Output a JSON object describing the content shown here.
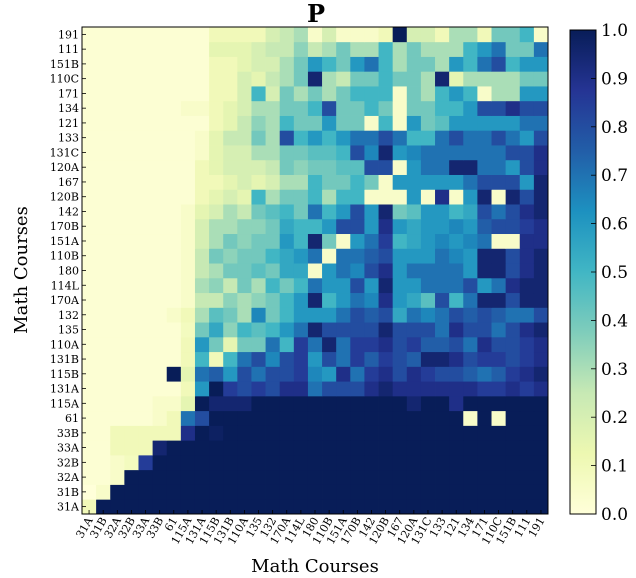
{
  "chart_data": {
    "type": "heatmap",
    "title": "P",
    "xlabel": "Math Courses",
    "ylabel": "Math Courses",
    "categories": [
      "31A",
      "31B",
      "32A",
      "32B",
      "33A",
      "33B",
      "61",
      "115A",
      "131A",
      "115B",
      "131B",
      "110A",
      "135",
      "132",
      "170A",
      "114L",
      "180",
      "110B",
      "151A",
      "170B",
      "142",
      "120B",
      "167",
      "120A",
      "131C",
      "133",
      "121",
      "134",
      "171",
      "110C",
      "151B",
      "111",
      "191"
    ],
    "colorbar": {
      "range": [
        0.0,
        1.0
      ],
      "ticks": [
        "0.0",
        "0.1",
        "0.2",
        "0.3",
        "0.4",
        "0.5",
        "0.6",
        "0.7",
        "0.8",
        "0.9",
        "1.0"
      ]
    },
    "values_note": "values[i][j]: row i = y-axis course (bottom to top), column j = x-axis course (left to right)",
    "values": [
      [
        0.1,
        1.0,
        1.0,
        1.0,
        1.0,
        1.0,
        1.0,
        1.0,
        1.0,
        1.0,
        1.0,
        1.0,
        1.0,
        1.0,
        1.0,
        1.0,
        1.0,
        1.0,
        1.0,
        1.0,
        1.0,
        1.0,
        1.0,
        1.0,
        1.0,
        1.0,
        1.0,
        1.0,
        1.0,
        1.0,
        1.0,
        1.0,
        1.0
      ],
      [
        0.0,
        0.05,
        1.0,
        1.0,
        1.0,
        1.0,
        1.0,
        1.0,
        1.0,
        1.0,
        1.0,
        1.0,
        1.0,
        1.0,
        1.0,
        1.0,
        1.0,
        1.0,
        1.0,
        1.0,
        1.0,
        1.0,
        1.0,
        1.0,
        1.0,
        1.0,
        1.0,
        1.0,
        1.0,
        1.0,
        1.0,
        1.0,
        1.0
      ],
      [
        0.02,
        0.02,
        0.05,
        1.0,
        1.0,
        1.0,
        1.0,
        1.0,
        1.0,
        1.0,
        1.0,
        1.0,
        1.0,
        1.0,
        1.0,
        1.0,
        1.0,
        1.0,
        1.0,
        1.0,
        1.0,
        1.0,
        1.0,
        1.0,
        1.0,
        1.0,
        1.0,
        1.0,
        1.0,
        1.0,
        1.0,
        1.0,
        1.0
      ],
      [
        0.02,
        0.02,
        0.05,
        0.08,
        0.85,
        1.0,
        1.0,
        1.0,
        1.0,
        1.0,
        1.0,
        1.0,
        1.0,
        1.0,
        1.0,
        1.0,
        1.0,
        1.0,
        1.0,
        1.0,
        1.0,
        1.0,
        1.0,
        1.0,
        1.0,
        1.0,
        1.0,
        1.0,
        1.0,
        1.0,
        1.0,
        1.0,
        1.0
      ],
      [
        0.02,
        0.02,
        0.1,
        0.1,
        0.1,
        0.95,
        1.0,
        1.0,
        1.0,
        1.0,
        1.0,
        1.0,
        1.0,
        1.0,
        1.0,
        1.0,
        1.0,
        1.0,
        1.0,
        1.0,
        1.0,
        1.0,
        1.0,
        1.0,
        1.0,
        1.0,
        1.0,
        1.0,
        1.0,
        1.0,
        1.0,
        1.0,
        1.0
      ],
      [
        0.02,
        0.02,
        0.1,
        0.1,
        0.1,
        0.1,
        0.1,
        0.9,
        1.0,
        0.98,
        1.0,
        1.0,
        1.0,
        1.0,
        1.0,
        1.0,
        1.0,
        1.0,
        1.0,
        1.0,
        1.0,
        1.0,
        1.0,
        1.0,
        1.0,
        1.0,
        1.0,
        1.0,
        1.0,
        1.0,
        1.0,
        1.0,
        1.0
      ],
      [
        0.02,
        0.02,
        0.02,
        0.02,
        0.02,
        0.05,
        0.1,
        0.7,
        0.8,
        1.0,
        1.0,
        1.0,
        1.0,
        1.0,
        1.0,
        1.0,
        1.0,
        1.0,
        1.0,
        1.0,
        1.0,
        1.0,
        1.0,
        1.0,
        1.0,
        1.0,
        1.0,
        0.05,
        1.0,
        0.05,
        1.0,
        1.0,
        1.0
      ],
      [
        0.02,
        0.02,
        0.02,
        0.02,
        0.02,
        0.05,
        0.05,
        0.15,
        1.0,
        0.95,
        0.95,
        0.95,
        1.0,
        1.0,
        1.0,
        1.0,
        1.0,
        1.0,
        1.0,
        1.0,
        1.0,
        1.0,
        1.0,
        0.95,
        1.0,
        1.0,
        0.9,
        1.0,
        1.0,
        1.0,
        1.0,
        1.0,
        1.0
      ],
      [
        0.02,
        0.02,
        0.02,
        0.02,
        0.02,
        0.02,
        0.02,
        0.1,
        0.6,
        1.0,
        0.85,
        0.8,
        0.85,
        0.8,
        0.9,
        0.9,
        0.7,
        0.8,
        0.8,
        0.8,
        0.9,
        0.95,
        0.9,
        0.9,
        0.9,
        0.9,
        0.9,
        0.9,
        0.85,
        0.85,
        0.9,
        0.85,
        0.9
      ],
      [
        0.02,
        0.02,
        0.02,
        0.02,
        0.02,
        0.02,
        1.0,
        0.15,
        0.7,
        0.75,
        0.6,
        0.8,
        0.7,
        0.8,
        0.8,
        0.85,
        0.65,
        0.6,
        0.9,
        0.7,
        0.85,
        0.9,
        0.8,
        0.9,
        0.85,
        0.8,
        0.8,
        0.75,
        0.7,
        0.75,
        0.85,
        0.9,
        0.95
      ],
      [
        0.02,
        0.02,
        0.02,
        0.02,
        0.02,
        0.02,
        0.02,
        0.1,
        0.5,
        0.1,
        0.5,
        0.7,
        0.8,
        0.65,
        0.8,
        0.85,
        0.6,
        0.8,
        0.7,
        0.85,
        0.75,
        0.85,
        0.8,
        0.75,
        0.95,
        0.95,
        0.9,
        0.8,
        0.85,
        0.85,
        0.8,
        0.85,
        0.9
      ],
      [
        0.02,
        0.02,
        0.02,
        0.02,
        0.02,
        0.02,
        0.02,
        0.1,
        0.6,
        0.4,
        0.15,
        0.4,
        0.4,
        0.7,
        0.5,
        0.85,
        0.7,
        0.95,
        0.7,
        0.85,
        0.85,
        0.9,
        0.8,
        0.85,
        0.75,
        0.75,
        0.8,
        0.7,
        0.9,
        0.8,
        0.8,
        0.85,
        0.9
      ],
      [
        0.02,
        0.02,
        0.02,
        0.02,
        0.02,
        0.02,
        0.02,
        0.08,
        0.4,
        0.55,
        0.35,
        0.5,
        0.45,
        0.5,
        0.6,
        0.7,
        0.95,
        0.8,
        0.8,
        0.8,
        0.8,
        0.95,
        0.8,
        0.8,
        0.8,
        0.7,
        0.9,
        0.8,
        0.8,
        0.7,
        0.8,
        0.9,
        0.95
      ],
      [
        0.02,
        0.02,
        0.02,
        0.02,
        0.02,
        0.02,
        0.05,
        0.1,
        0.3,
        0.45,
        0.4,
        0.3,
        0.65,
        0.4,
        0.5,
        0.6,
        0.6,
        0.6,
        0.7,
        0.8,
        0.75,
        0.8,
        0.55,
        0.7,
        0.65,
        0.7,
        0.8,
        0.75,
        0.8,
        0.75,
        0.7,
        0.7,
        0.8
      ],
      [
        0.02,
        0.02,
        0.02,
        0.02,
        0.02,
        0.02,
        0.02,
        0.05,
        0.25,
        0.25,
        0.35,
        0.3,
        0.35,
        0.4,
        0.5,
        0.6,
        0.95,
        0.5,
        0.6,
        0.7,
        0.65,
        0.9,
        0.6,
        0.55,
        0.45,
        0.8,
        0.5,
        0.7,
        0.95,
        0.95,
        0.8,
        0.95,
        0.95
      ],
      [
        0.02,
        0.02,
        0.02,
        0.02,
        0.02,
        0.02,
        0.02,
        0.05,
        0.3,
        0.35,
        0.25,
        0.4,
        0.3,
        0.5,
        0.4,
        0.5,
        0.7,
        0.6,
        0.6,
        0.8,
        0.6,
        0.95,
        0.6,
        0.6,
        0.7,
        0.7,
        0.7,
        0.8,
        0.6,
        0.7,
        0.9,
        0.95,
        0.95
      ],
      [
        0.02,
        0.02,
        0.02,
        0.02,
        0.02,
        0.02,
        0.02,
        0.05,
        0.25,
        0.3,
        0.4,
        0.4,
        0.45,
        0.4,
        0.55,
        0.55,
        0.05,
        0.6,
        0.7,
        0.65,
        0.8,
        0.9,
        0.6,
        0.7,
        0.7,
        0.7,
        0.7,
        0.6,
        0.95,
        0.95,
        0.8,
        0.9,
        0.95
      ],
      [
        0.02,
        0.02,
        0.02,
        0.02,
        0.02,
        0.02,
        0.02,
        0.05,
        0.25,
        0.4,
        0.35,
        0.4,
        0.4,
        0.5,
        0.55,
        0.6,
        0.7,
        0.05,
        0.7,
        0.7,
        0.75,
        0.8,
        0.6,
        0.6,
        0.6,
        0.7,
        0.65,
        0.6,
        0.95,
        0.95,
        0.8,
        0.9,
        0.95
      ],
      [
        0.02,
        0.02,
        0.02,
        0.02,
        0.02,
        0.02,
        0.02,
        0.05,
        0.2,
        0.3,
        0.4,
        0.35,
        0.4,
        0.4,
        0.6,
        0.5,
        0.95,
        0.4,
        0.05,
        0.6,
        0.7,
        0.85,
        0.5,
        0.55,
        0.6,
        0.65,
        0.6,
        0.65,
        0.7,
        0.05,
        0.05,
        0.9,
        0.9
      ],
      [
        0.02,
        0.02,
        0.02,
        0.02,
        0.02,
        0.02,
        0.02,
        0.05,
        0.2,
        0.3,
        0.3,
        0.35,
        0.35,
        0.4,
        0.55,
        0.5,
        0.5,
        0.6,
        0.8,
        0.8,
        0.6,
        0.9,
        0.6,
        0.55,
        0.6,
        0.6,
        0.65,
        0.6,
        0.75,
        0.8,
        0.8,
        0.85,
        0.9
      ],
      [
        0.02,
        0.02,
        0.02,
        0.02,
        0.02,
        0.02,
        0.02,
        0.05,
        0.15,
        0.2,
        0.3,
        0.25,
        0.4,
        0.45,
        0.5,
        0.4,
        0.7,
        0.5,
        0.6,
        0.8,
        0.6,
        0.95,
        0.4,
        0.45,
        0.6,
        0.6,
        0.5,
        0.55,
        0.8,
        0.7,
        0.8,
        0.9,
        0.95
      ],
      [
        0.02,
        0.02,
        0.02,
        0.02,
        0.02,
        0.02,
        0.02,
        0.02,
        0.1,
        0.15,
        0.2,
        0.15,
        0.5,
        0.3,
        0.4,
        0.4,
        0.5,
        0.3,
        0.5,
        0.5,
        0.05,
        0.05,
        0.05,
        0.6,
        0.05,
        0.9,
        0.05,
        0.6,
        0.95,
        0.05,
        0.95,
        0.8,
        0.95
      ],
      [
        0.02,
        0.02,
        0.02,
        0.02,
        0.02,
        0.02,
        0.02,
        0.02,
        0.1,
        0.1,
        0.15,
        0.2,
        0.15,
        0.2,
        0.3,
        0.3,
        0.5,
        0.4,
        0.4,
        0.5,
        0.4,
        0.05,
        0.6,
        0.6,
        0.6,
        0.6,
        0.6,
        0.7,
        0.8,
        0.8,
        0.8,
        0.6,
        0.95
      ],
      [
        0.02,
        0.02,
        0.02,
        0.02,
        0.02,
        0.02,
        0.02,
        0.02,
        0.1,
        0.15,
        0.2,
        0.2,
        0.2,
        0.25,
        0.4,
        0.35,
        0.4,
        0.4,
        0.45,
        0.45,
        0.8,
        0.8,
        0.05,
        0.6,
        0.7,
        0.7,
        0.95,
        0.95,
        0.7,
        0.7,
        0.6,
        0.8,
        0.9
      ],
      [
        0.02,
        0.02,
        0.02,
        0.02,
        0.02,
        0.02,
        0.02,
        0.02,
        0.05,
        0.15,
        0.2,
        0.2,
        0.3,
        0.3,
        0.4,
        0.4,
        0.45,
        0.45,
        0.5,
        0.8,
        0.65,
        0.95,
        0.6,
        0.65,
        0.7,
        0.7,
        0.7,
        0.7,
        0.7,
        0.7,
        0.8,
        0.8,
        0.9
      ],
      [
        0.02,
        0.02,
        0.02,
        0.02,
        0.02,
        0.02,
        0.02,
        0.02,
        0.05,
        0.15,
        0.25,
        0.25,
        0.4,
        0.3,
        0.8,
        0.5,
        0.6,
        0.5,
        0.6,
        0.7,
        0.7,
        0.8,
        0.7,
        0.5,
        0.5,
        0.7,
        0.8,
        0.7,
        0.7,
        0.8,
        0.7,
        0.6,
        0.8
      ],
      [
        0.02,
        0.02,
        0.02,
        0.02,
        0.02,
        0.02,
        0.02,
        0.02,
        0.02,
        0.1,
        0.15,
        0.25,
        0.35,
        0.3,
        0.5,
        0.4,
        0.4,
        0.6,
        0.4,
        0.4,
        0.05,
        0.5,
        0.05,
        0.6,
        0.4,
        0.45,
        0.6,
        0.6,
        0.6,
        0.6,
        0.6,
        0.7,
        0.7
      ],
      [
        0.02,
        0.02,
        0.02,
        0.02,
        0.02,
        0.02,
        0.02,
        0.05,
        0.05,
        0.1,
        0.15,
        0.2,
        0.3,
        0.3,
        0.4,
        0.4,
        0.5,
        0.8,
        0.4,
        0.4,
        0.5,
        0.4,
        0.05,
        0.4,
        0.4,
        0.5,
        0.5,
        0.6,
        0.8,
        0.8,
        0.9,
        0.8,
        0.8
      ],
      [
        0.02,
        0.02,
        0.02,
        0.02,
        0.02,
        0.02,
        0.02,
        0.02,
        0.02,
        0.1,
        0.1,
        0.2,
        0.5,
        0.2,
        0.4,
        0.3,
        0.4,
        0.3,
        0.4,
        0.5,
        0.5,
        0.5,
        0.05,
        0.4,
        0.3,
        0.5,
        0.6,
        0.5,
        0.05,
        0.3,
        0.3,
        0.6,
        0.6
      ],
      [
        0.02,
        0.02,
        0.02,
        0.02,
        0.02,
        0.02,
        0.02,
        0.02,
        0.02,
        0.1,
        0.1,
        0.2,
        0.15,
        0.25,
        0.3,
        0.4,
        0.95,
        0.3,
        0.25,
        0.4,
        0.4,
        0.5,
        0.4,
        0.4,
        0.3,
        0.95,
        0.15,
        0.3,
        0.3,
        0.3,
        0.3,
        0.4,
        0.4
      ],
      [
        0.02,
        0.02,
        0.02,
        0.02,
        0.02,
        0.02,
        0.02,
        0.02,
        0.02,
        0.1,
        0.1,
        0.15,
        0.2,
        0.2,
        0.3,
        0.4,
        0.6,
        0.5,
        0.4,
        0.6,
        0.7,
        0.5,
        0.3,
        0.4,
        0.4,
        0.3,
        0.6,
        0.5,
        0.7,
        0.8,
        0.5,
        0.6,
        0.6
      ],
      [
        0.02,
        0.02,
        0.02,
        0.02,
        0.02,
        0.02,
        0.02,
        0.02,
        0.02,
        0.15,
        0.15,
        0.15,
        0.2,
        0.25,
        0.25,
        0.35,
        0.25,
        0.3,
        0.4,
        0.3,
        0.3,
        0.5,
        0.3,
        0.4,
        0.3,
        0.3,
        0.3,
        0.5,
        0.6,
        0.7,
        0.4,
        0.4,
        0.7
      ],
      [
        0.02,
        0.02,
        0.02,
        0.02,
        0.02,
        0.02,
        0.02,
        0.02,
        0.02,
        0.1,
        0.1,
        0.1,
        0.1,
        0.2,
        0.25,
        0.3,
        0.05,
        0.2,
        0.05,
        0.05,
        0.05,
        0.1,
        1.0,
        0.2,
        0.2,
        0.1,
        0.3,
        0.3,
        0.1,
        0.4,
        0.4,
        0.5,
        0.05
      ]
    ]
  }
}
